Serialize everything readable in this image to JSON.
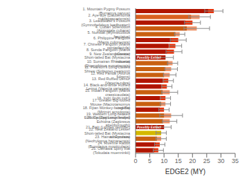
{
  "chart_data": {
    "type": "bar",
    "orientation": "horizontal",
    "xlabel": "EDGE2 (MY)",
    "categories": [
      "1. Mountain Pygmy Possum (Burramys parvus)",
      "2. Aye-aye (Daubentonia madagascariensis)",
      "3. Leadbeater's Possum (Gymnobelideus leadbeateri)",
      "4. Cuban Solenodon (Atopogale cubana)",
      "5. Numbat (Myrmecobius fasciatus)",
      "6. Philippine Pangolin (Manis culionensis)",
      "7. Chinese Pangolin (Manis pentadactyla)",
      "8. Sunda Pangolin (Manis javanica)",
      "9. New Zealand Greater Short-tailed Bat (Mystacina robusta)",
      "10. Sumatran Rhinoceros (Dicerorhinus sumatrensis)",
      "11. Pearson's Long-clawed Shrew (Solisorex pearsoni)",
      "12. Red Panda (Ailurus fulgens)",
      "13. Red Ruffled Lemur (Varecia rubra)",
      "14. Black-and-white Ruffled Lemur (Varecia variegata)",
      "15. Indian Pangolin (Manis crassicaudata)",
      "16. Indri (Indri indri)",
      "17. Greater Big-footed Mouse (Macrotarsomys ingens)",
      "18. Fijian Monkey-faced Bat (Mirimiri acrodonta)",
      "19. Western Long-beaked Echidna (Zaglossus bruijni)",
      "20. Cyclops Long-beaked Echidna (Zaglossus attenboroughi)",
      "21. Baiji (Lipotes vexillifer)",
      "22. New Zealand Lesser Short-tailed Bat (Mystacina tuberculata)",
      "23. Hainan Gymnure (Neohylomys hainanensis)",
      "24. Riverine Rabbit (Bunolagus monticularis)",
      "25. Okinawa Spiny Rat (Tokudaia muenninkii)"
    ],
    "series": [
      {
        "values": [
          27.5,
          22.5,
          20.0,
          21.5,
          15.5,
          15.0,
          14.0,
          13.5,
          10.5,
          13.0,
          12.5,
          12.0,
          11.5,
          11.0,
          12.0,
          10.5,
          10.5,
          10.0,
          12.5,
          12.0,
          10.0,
          9.0,
          9.0,
          8.5,
          8.0
        ],
        "errors": [
          3.2,
          3.8,
          2.8,
          4.5,
          1.8,
          2.8,
          2.2,
          2.8,
          2.8,
          1.8,
          2.2,
          2.2,
          1.8,
          1.8,
          2.8,
          1.8,
          1.8,
          1.8,
          4.0,
          2.5,
          2.5,
          1.8,
          1.8,
          1.8,
          1.8
        ],
        "colors": [
          "#e8330a",
          "#f0956a",
          "#e8330a",
          "#f0956a",
          "#f0956a",
          "#e8330a",
          "#e8330a",
          "#e8330a",
          "#e8330a",
          "#f0956a",
          "#f0956a",
          "#f0956a",
          "#e8330a",
          "#e8330a",
          "#f0956a",
          "#e8330a",
          "#f0956a",
          "#e8330a",
          "#f0956a",
          "#f0956a",
          "#e8330a",
          "#f5e200",
          "#f0956a",
          "#e8330a",
          "#e8330a"
        ]
      },
      {
        "values": [
          25.5,
          19.5,
          17.5,
          18.0,
          14.0,
          12.5,
          11.5,
          11.0,
          10.5,
          11.5,
          10.5,
          10.0,
          9.5,
          9.0,
          9.5,
          8.5,
          9.0,
          8.5,
          10.0,
          9.5,
          10.0,
          9.0,
          7.5,
          7.0,
          6.5
        ],
        "colors": [
          "#b01500",
          "#d96020",
          "#b01500",
          "#c85a10",
          "#c86010",
          "#b01500",
          "#b01500",
          "#b01500",
          "#b01500",
          "#c86010",
          "#c86010",
          "#c86010",
          "#b01500",
          "#b01500",
          "#c86010",
          "#b01500",
          "#c86010",
          "#b01500",
          "#c86010",
          "#c86010",
          "#b01500",
          "#d4b800",
          "#c86010",
          "#b01500",
          "#b01500"
        ]
      }
    ],
    "annotations": [
      {
        "category": "9. New Zealand Greater Short-tailed Bat (Mystacina robusta)",
        "text": "Possibly Extinct"
      },
      {
        "category": "21. Baiji (Lipotes vexillifer)",
        "text": "Possibly Extinct"
      }
    ],
    "xlim": [
      0,
      35
    ],
    "xticks": [
      0,
      5,
      10,
      15,
      20,
      25,
      30,
      35
    ],
    "grid": false
  }
}
